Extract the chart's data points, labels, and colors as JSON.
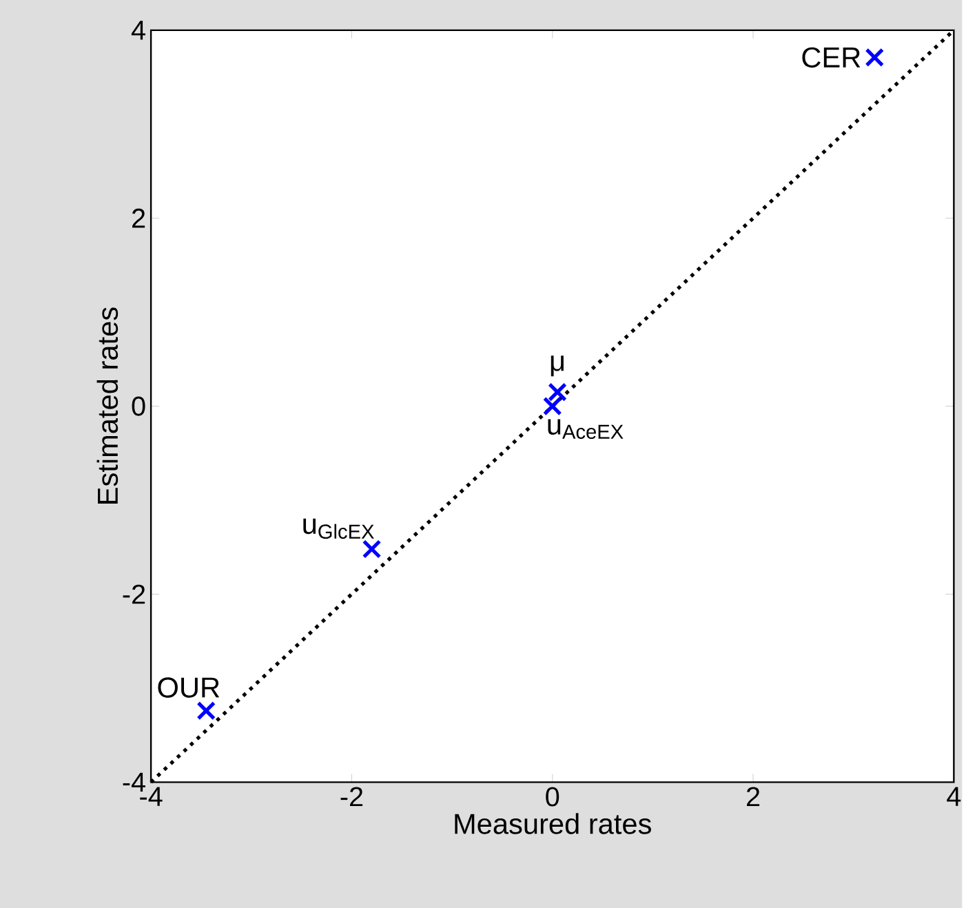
{
  "chart_data": {
    "type": "scatter",
    "xlabel": "Measured rates",
    "ylabel": "Estimated rates",
    "xlim": [
      -4,
      4
    ],
    "ylim": [
      -4,
      4
    ],
    "xticks": [
      -4,
      -2,
      0,
      2,
      4
    ],
    "yticks": [
      -4,
      -2,
      0,
      2,
      4
    ],
    "marker": "cross",
    "series": [
      {
        "color": "#0000ff",
        "x": [
          3.21,
          0.05,
          0.0,
          -1.8,
          -3.45
        ],
        "values": [
          3.71,
          0.15,
          0.0,
          -1.52,
          -3.24
        ]
      },
      {
        "type": "line",
        "color": "#000000",
        "line_style": "dotted",
        "marker": "none",
        "x": [
          -4,
          4
        ],
        "values": [
          -4,
          4
        ]
      }
    ],
    "annotations": [
      {
        "text": "CER",
        "x": 3.21,
        "y": 3.71
      },
      {
        "text": "μ",
        "x": 0.05,
        "y": 0.15
      },
      {
        "text": "u$_{AceEX}$",
        "x": 0.0,
        "y": 0.0
      },
      {
        "text": "u$_{GlcEX}$",
        "x": -1.8,
        "y": -1.52
      },
      {
        "text": "OUR",
        "x": -3.45,
        "y": -3.24
      }
    ]
  }
}
